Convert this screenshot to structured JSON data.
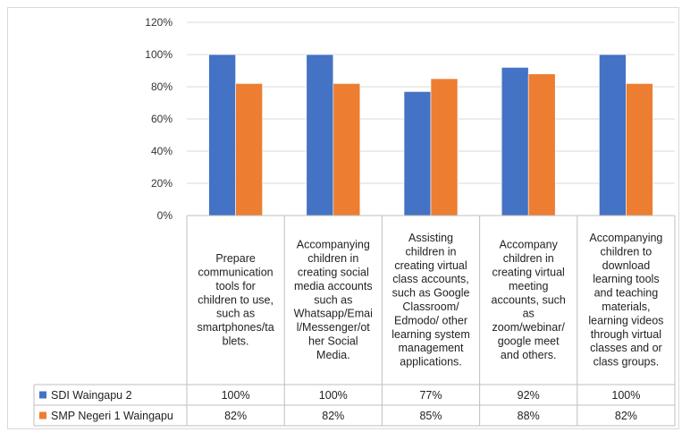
{
  "chart_data": {
    "type": "bar",
    "title": "",
    "xlabel": "",
    "ylabel": "",
    "ylim": [
      0,
      120
    ],
    "y_ticks": [
      "0%",
      "20%",
      "40%",
      "60%",
      "80%",
      "100%",
      "120%"
    ],
    "y_tick_values": [
      0,
      20,
      40,
      60,
      80,
      100,
      120
    ],
    "grid": true,
    "legend": "in data table rows",
    "categories": [
      [
        "Prepare",
        "communication",
        "tools for",
        "children to use,",
        "such as",
        "smartphones/ta",
        "blets."
      ],
      [
        "Accompanying",
        "children in",
        "creating social",
        "media accounts",
        "such as",
        "Whatsapp/Emai",
        "l/Messenger/ot",
        "her Social",
        "Media."
      ],
      [
        "Assisting",
        "children in",
        "creating virtual",
        "class accounts,",
        "such as Google",
        "Classroom/",
        "Edmodo/ other",
        "learning system",
        "management",
        "applications."
      ],
      [
        "Accompany",
        "children in",
        "creating virtual",
        "meeting",
        "accounts, such",
        "as",
        "zoom/webinar/",
        "google meet",
        "and others."
      ],
      [
        "Accompanying",
        "children to",
        "download",
        "learning tools",
        "and teaching",
        "materials,",
        "learning videos",
        "through virtual",
        "classes and or",
        "class groups."
      ]
    ],
    "series": [
      {
        "name": "SDI Waingapu 2",
        "color": "#4472c4",
        "values": [
          100,
          100,
          77,
          92,
          100
        ],
        "labels": [
          "100%",
          "100%",
          "77%",
          "92%",
          "100%"
        ]
      },
      {
        "name": "SMP Negeri 1 Waingapu",
        "color": "#ed7d31",
        "values": [
          82,
          82,
          85,
          88,
          82
        ],
        "labels": [
          "82%",
          "82%",
          "85%",
          "88%",
          "82%"
        ]
      }
    ]
  }
}
